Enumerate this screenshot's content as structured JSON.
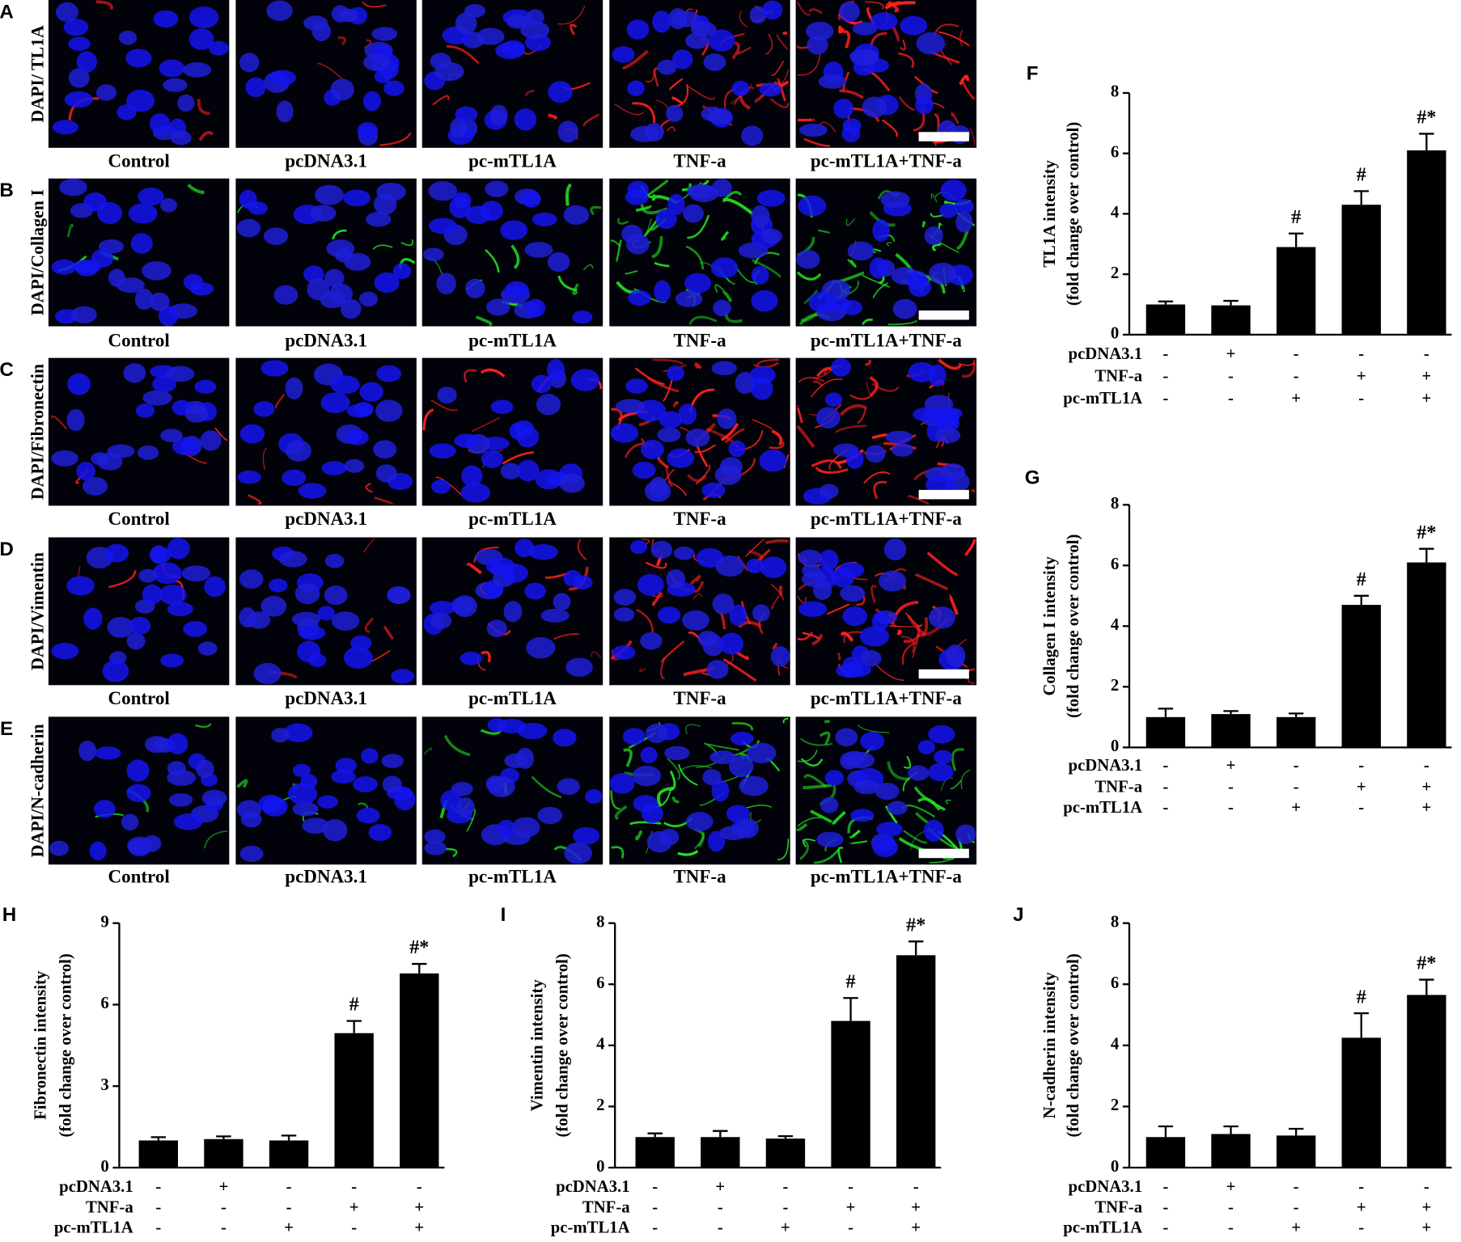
{
  "micrographs": {
    "rows": [
      {
        "panel": "A",
        "label": "DAPI/ TL1A"
      },
      {
        "panel": "B",
        "label": "DAPI/Collagen I"
      },
      {
        "panel": "C",
        "label": "DAPI/Fibronectin"
      },
      {
        "panel": "D",
        "label": "DAPI/Vimentin"
      },
      {
        "panel": "E",
        "label": "DAPI/N-cadherin"
      }
    ],
    "columns": [
      "Control",
      "pcDNA3.1",
      "pc-mTL1A",
      "TNF-a",
      "pc-mTL1A+TNF-a"
    ]
  },
  "chart_data": [
    {
      "type": "bar",
      "panel": "F",
      "ylabel": [
        "TL1A intensity",
        "(fold change over control)"
      ],
      "values": [
        1.0,
        0.97,
        2.9,
        4.3,
        6.1
      ],
      "errors": [
        0.1,
        0.15,
        0.45,
        0.45,
        0.55
      ],
      "annotations": [
        null,
        null,
        "#",
        "#",
        "#*"
      ],
      "color": "#000000",
      "ylim": [
        0,
        8
      ],
      "yticks": [
        0,
        2,
        4,
        6,
        8
      ],
      "conditions": [
        {
          "name": "pcDNA3.1",
          "signs": [
            "-",
            "+",
            "-",
            "-",
            "-"
          ]
        },
        {
          "name": "TNF-a",
          "signs": [
            "-",
            "-",
            "-",
            "+",
            "+"
          ]
        },
        {
          "name": "pc-mTL1A",
          "signs": [
            "-",
            "-",
            "+",
            "-",
            "+"
          ]
        }
      ]
    },
    {
      "type": "bar",
      "panel": "G",
      "ylabel": [
        "Collagen I intensity",
        "(fold change over control)"
      ],
      "values": [
        1.0,
        1.1,
        1.0,
        4.7,
        6.1
      ],
      "errors": [
        0.28,
        0.1,
        0.12,
        0.3,
        0.45
      ],
      "annotations": [
        null,
        null,
        null,
        "#",
        "#*"
      ],
      "color": "#000000",
      "ylim": [
        0,
        8
      ],
      "yticks": [
        0,
        2,
        4,
        6,
        8
      ],
      "conditions": [
        {
          "name": "pcDNA3.1",
          "signs": [
            "-",
            "+",
            "-",
            "-",
            "-"
          ]
        },
        {
          "name": "TNF-a",
          "signs": [
            "-",
            "-",
            "-",
            "+",
            "+"
          ]
        },
        {
          "name": "pc-mTL1A",
          "signs": [
            "-",
            "-",
            "+",
            "-",
            "+"
          ]
        }
      ]
    },
    {
      "type": "bar",
      "panel": "H",
      "ylabel": [
        "Fibronectin intensity",
        "(fold change over control)"
      ],
      "values": [
        1.0,
        1.05,
        1.0,
        4.95,
        7.15
      ],
      "errors": [
        0.12,
        0.1,
        0.18,
        0.45,
        0.35
      ],
      "annotations": [
        null,
        null,
        null,
        "#",
        "#*"
      ],
      "color": "#000000",
      "ylim": [
        0,
        9
      ],
      "yticks": [
        0,
        3,
        6,
        9
      ],
      "conditions": [
        {
          "name": "pcDNA3.1",
          "signs": [
            "-",
            "+",
            "-",
            "-",
            "-"
          ]
        },
        {
          "name": "TNF-a",
          "signs": [
            "-",
            "-",
            "-",
            "+",
            "+"
          ]
        },
        {
          "name": "pc-mTL1A",
          "signs": [
            "-",
            "-",
            "+",
            "-",
            "+"
          ]
        }
      ]
    },
    {
      "type": "bar",
      "panel": "I",
      "ylabel": [
        "Vimentin intensity",
        "(fold change over control)"
      ],
      "values": [
        1.0,
        1.0,
        0.95,
        4.8,
        6.95
      ],
      "errors": [
        0.12,
        0.2,
        0.08,
        0.75,
        0.45
      ],
      "annotations": [
        null,
        null,
        null,
        "#",
        "#*"
      ],
      "color": "#000000",
      "ylim": [
        0,
        8
      ],
      "yticks": [
        0,
        2,
        4,
        6,
        8
      ],
      "conditions": [
        {
          "name": "pcDNA3.1",
          "signs": [
            "-",
            "+",
            "-",
            "-",
            "-"
          ]
        },
        {
          "name": "TNF-a",
          "signs": [
            "-",
            "-",
            "-",
            "+",
            "+"
          ]
        },
        {
          "name": "pc-mTL1A",
          "signs": [
            "-",
            "-",
            "+",
            "-",
            "+"
          ]
        }
      ]
    },
    {
      "type": "bar",
      "panel": "J",
      "ylabel": [
        "N-cadherin intensity",
        "(fold change over control)"
      ],
      "values": [
        1.0,
        1.1,
        1.05,
        4.25,
        5.65
      ],
      "errors": [
        0.35,
        0.25,
        0.22,
        0.8,
        0.5
      ],
      "annotations": [
        null,
        null,
        null,
        "#",
        "#*"
      ],
      "color": "#000000",
      "ylim": [
        0,
        8
      ],
      "yticks": [
        0,
        2,
        4,
        6,
        8
      ],
      "conditions": [
        {
          "name": "pcDNA3.1",
          "signs": [
            "-",
            "+",
            "-",
            "-",
            "-"
          ]
        },
        {
          "name": "TNF-a",
          "signs": [
            "-",
            "-",
            "-",
            "+",
            "+"
          ]
        },
        {
          "name": "pc-mTL1A",
          "signs": [
            "-",
            "-",
            "+",
            "-",
            "+"
          ]
        }
      ]
    }
  ]
}
